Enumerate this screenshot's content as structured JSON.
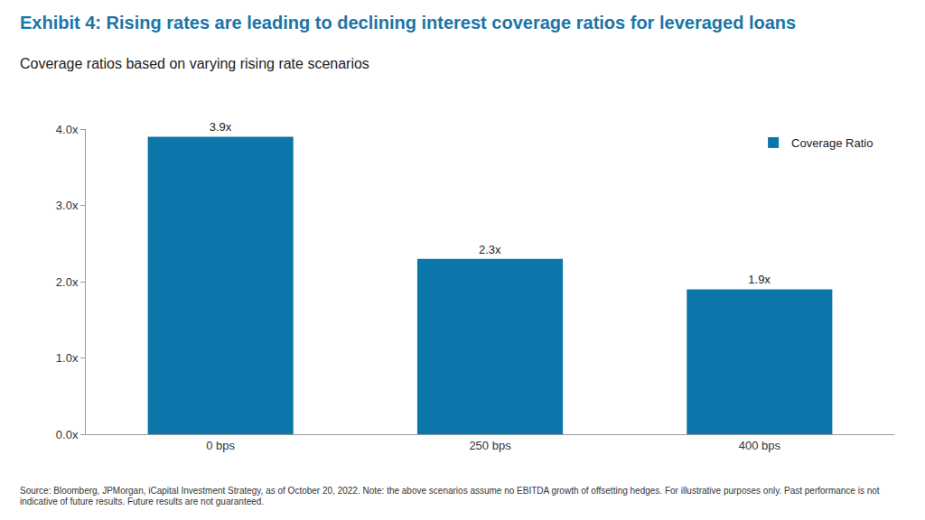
{
  "chart_data": {
    "type": "bar",
    "title": "Exhibit 4: Rising rates are leading to declining interest coverage ratios for leveraged loans",
    "subtitle": "Coverage ratios based on varying rising rate scenarios",
    "note": "Source: Bloomberg, JPMorgan, iCapital Investment Strategy, as of October 20, 2022. Note: the above scenarios assume no EBITDA growth of offsetting hedges. For illustrative purposes only. Past performance is not indicative of future results. Future results are not guaranteed.",
    "categories": [
      "0 bps",
      "250 bps",
      "400 bps"
    ],
    "series": [
      {
        "name": "Coverage Ratio",
        "color": "#0a76aa",
        "values": [
          3.9,
          2.3,
          1.9
        ],
        "value_labels": [
          "3.9x",
          "2.3x",
          "1.9x"
        ]
      }
    ],
    "ylim": [
      0,
      4
    ],
    "yticks": [
      {
        "value": 0,
        "label": "0.0x"
      },
      {
        "value": 1,
        "label": "1.0x"
      },
      {
        "value": 2,
        "label": "2.0x"
      },
      {
        "value": 3,
        "label": "3.0x"
      },
      {
        "value": 4,
        "label": "4.0x"
      }
    ],
    "grid": false,
    "legend": "top right",
    "data_labels": true
  }
}
